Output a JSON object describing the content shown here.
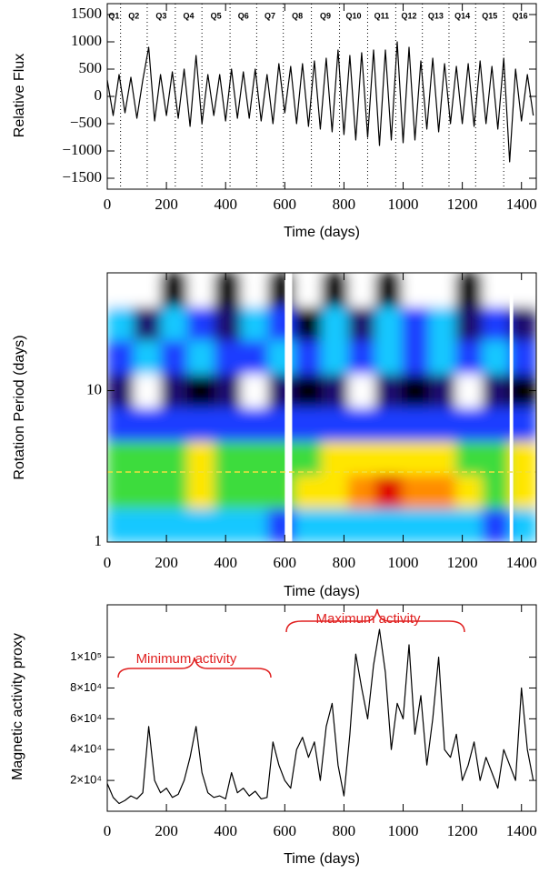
{
  "chart_data": [
    {
      "type": "line",
      "y_label": "Relative Flux",
      "x_label": "Time (days)",
      "color": "#000000",
      "xlim": [
        0,
        1450
      ],
      "ylim": [
        -1700,
        1700
      ],
      "xticks": [
        0,
        200,
        400,
        600,
        800,
        1000,
        1200,
        1400
      ],
      "yticks": [
        {
          "value": -1500,
          "label": "−1500"
        },
        {
          "value": -1000,
          "label": "−1000"
        },
        {
          "value": -500,
          "label": "−500"
        },
        0,
        500,
        1000,
        1500
      ],
      "quarters": [
        "Q1",
        "Q2",
        "Q3",
        "Q4",
        "Q5",
        "Q6",
        "Q7",
        "Q8",
        "Q9",
        "Q10",
        "Q11",
        "Q12",
        "Q13",
        "Q14",
        "Q15",
        "Q16"
      ],
      "quarter_boundaries": [
        45,
        135,
        230,
        320,
        415,
        505,
        595,
        690,
        785,
        880,
        975,
        1065,
        1155,
        1245,
        1340
      ],
      "x": [
        0,
        20,
        40,
        60,
        80,
        100,
        120,
        140,
        160,
        180,
        200,
        220,
        240,
        260,
        280,
        300,
        320,
        340,
        360,
        380,
        400,
        420,
        440,
        460,
        480,
        500,
        520,
        540,
        560,
        580,
        600,
        620,
        640,
        660,
        680,
        700,
        720,
        740,
        760,
        780,
        800,
        820,
        840,
        860,
        880,
        900,
        920,
        940,
        960,
        980,
        1000,
        1020,
        1040,
        1060,
        1080,
        1100,
        1120,
        1140,
        1160,
        1180,
        1200,
        1220,
        1240,
        1260,
        1280,
        1300,
        1320,
        1340,
        1360,
        1380,
        1400,
        1420,
        1440
      ],
      "values": [
        300,
        -350,
        400,
        -300,
        350,
        -400,
        300,
        900,
        -450,
        400,
        -350,
        450,
        -400,
        500,
        -550,
        750,
        -500,
        400,
        -350,
        400,
        -450,
        500,
        -400,
        450,
        -400,
        500,
        -450,
        400,
        -500,
        600,
        -300,
        550,
        -500,
        600,
        -550,
        650,
        -600,
        700,
        -650,
        850,
        -700,
        750,
        -800,
        800,
        -750,
        850,
        -900,
        850,
        -800,
        1000,
        -850,
        900,
        -800,
        650,
        -600,
        700,
        -650,
        600,
        -500,
        550,
        -500,
        600,
        -550,
        650,
        -500,
        550,
        -600,
        700,
        -1200,
        500,
        -450,
        400,
        -350
      ]
    },
    {
      "type": "heatmap",
      "y_label": "Rotation Period (days)",
      "x_label": "Time (days)",
      "ylog": true,
      "xlim": [
        0,
        1450
      ],
      "ylim": [
        1,
        60
      ],
      "xticks": [
        0,
        200,
        400,
        600,
        800,
        1000,
        1200,
        1400
      ],
      "yticks": [
        1,
        10
      ],
      "colorscale": [
        "#ffffff",
        "#000000",
        "#1a0a6e",
        "#1e3cff",
        "#19c8ff",
        "#3cdc3c",
        "#ffe600",
        "#ff8c00",
        "#e00000"
      ],
      "gaps": [
        [
          600,
          625
        ],
        [
          1360,
          1372
        ]
      ],
      "reference_period": 2.9,
      "reference_color": "#f0e040",
      "power": [
        [
          4,
          4,
          4,
          4,
          4,
          4,
          3,
          4,
          4,
          4,
          4,
          4,
          4,
          4,
          3,
          4
        ],
        [
          5,
          5,
          5,
          6,
          5,
          5,
          5,
          6,
          6,
          7,
          8,
          7,
          7,
          6,
          5,
          6
        ],
        [
          5,
          5,
          5,
          6,
          5,
          5,
          5,
          5,
          6,
          6,
          6,
          6,
          6,
          5,
          5,
          6
        ],
        [
          3,
          3,
          3,
          3,
          3,
          3,
          3,
          3,
          3,
          3,
          3,
          3,
          3,
          3,
          3,
          3
        ],
        [
          2,
          0,
          2,
          1,
          2,
          0,
          2,
          1,
          2,
          0,
          2,
          1,
          2,
          0,
          2,
          1
        ],
        [
          3,
          4,
          3,
          4,
          3,
          3,
          4,
          3,
          4,
          3,
          4,
          3,
          4,
          3,
          4,
          3
        ],
        [
          4,
          2,
          4,
          3,
          2,
          4,
          3,
          1,
          4,
          2,
          4,
          3,
          4,
          2,
          3,
          2
        ],
        [
          0,
          0,
          1,
          0,
          1,
          0,
          1,
          0,
          1,
          0,
          1,
          0,
          0,
          1,
          0,
          0
        ]
      ]
    },
    {
      "type": "line",
      "y_label": "Magnetic activity proxy",
      "x_label": "Time (days)",
      "color": "#000000",
      "annotations": [
        "Minimum activity",
        "Maximum activity"
      ],
      "annotation_color": "#e02020",
      "xlim": [
        0,
        1450
      ],
      "ylim": [
        0,
        134000
      ],
      "xticks": [
        0,
        200,
        400,
        600,
        800,
        1000,
        1200,
        1400
      ],
      "yticks": [
        {
          "value": 20000,
          "label": "2×10⁴"
        },
        {
          "value": 40000,
          "label": "4×10⁴"
        },
        {
          "value": 60000,
          "label": "6×10⁴"
        },
        {
          "value": 80000,
          "label": "8×10⁴"
        },
        {
          "value": 100000,
          "label": "1×10⁵"
        }
      ],
      "x": [
        0,
        20,
        40,
        60,
        80,
        100,
        120,
        140,
        160,
        180,
        200,
        220,
        240,
        260,
        280,
        300,
        320,
        340,
        360,
        380,
        400,
        420,
        440,
        460,
        480,
        500,
        520,
        540,
        560,
        580,
        600,
        620,
        640,
        660,
        680,
        700,
        720,
        740,
        760,
        780,
        800,
        820,
        840,
        860,
        880,
        900,
        920,
        940,
        960,
        980,
        1000,
        1020,
        1040,
        1060,
        1080,
        1100,
        1120,
        1140,
        1160,
        1180,
        1200,
        1220,
        1240,
        1260,
        1280,
        1300,
        1320,
        1340,
        1360,
        1380,
        1400,
        1420,
        1440
      ],
      "values": [
        18000,
        9000,
        5000,
        7000,
        10000,
        8000,
        12000,
        55000,
        20000,
        12000,
        15000,
        9000,
        11000,
        20000,
        35000,
        55000,
        25000,
        12000,
        9000,
        10000,
        8000,
        25000,
        12000,
        15000,
        10000,
        13000,
        8000,
        9000,
        45000,
        30000,
        20000,
        15000,
        40000,
        48000,
        35000,
        45000,
        20000,
        55000,
        70000,
        30000,
        10000,
        50000,
        102000,
        80000,
        60000,
        95000,
        118000,
        90000,
        40000,
        70000,
        60000,
        108000,
        50000,
        75000,
        30000,
        60000,
        100000,
        40000,
        35000,
        50000,
        20000,
        30000,
        45000,
        20000,
        35000,
        25000,
        15000,
        40000,
        30000,
        20000,
        80000,
        40000,
        20000
      ]
    }
  ]
}
